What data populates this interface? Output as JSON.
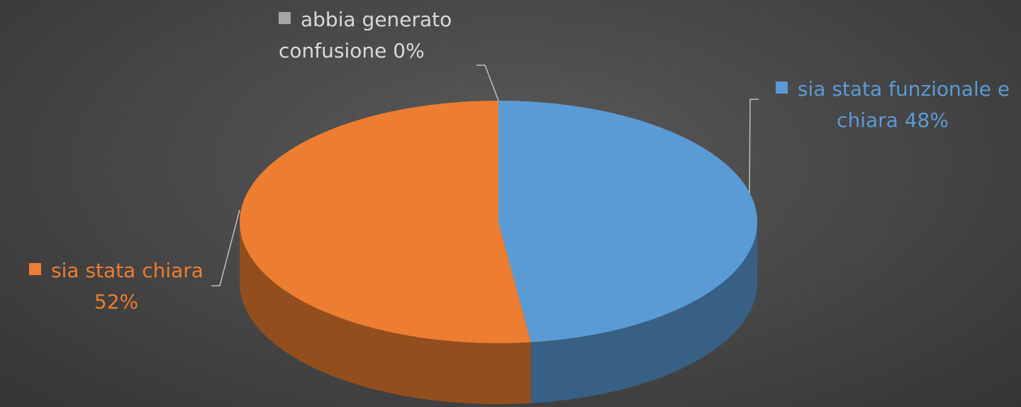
{
  "chart_data": {
    "type": "pie3d",
    "categories": [
      "sia stata funzionale e chiara",
      "sia stata chiara",
      "abbia generato confusione"
    ],
    "values": [
      48,
      52,
      0
    ],
    "value_labels": [
      "48%",
      "52%",
      "0%"
    ],
    "colors": [
      "#5b9bd5",
      "#ed7d31",
      "#a5a5a5"
    ]
  }
}
